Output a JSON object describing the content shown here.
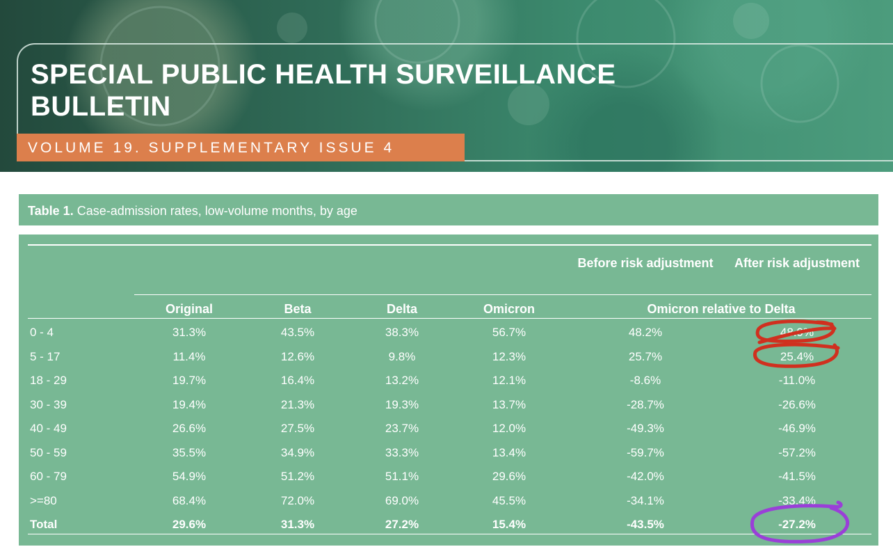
{
  "banner": {
    "title": "SPECIAL PUBLIC HEALTH SURVEILLANCE BULLETIN",
    "volume": "VOLUME 19. SUPPLEMENTARY ISSUE 4"
  },
  "table": {
    "caption_bold": "Table 1.",
    "caption": " Case-admission rates, low-volume months, by age",
    "group_header": "Omicron relative to Delta",
    "subheaders": {
      "before": "Before risk adjustment",
      "after": "After risk adjustment"
    },
    "columns": [
      "Original",
      "Beta",
      "Delta",
      "Omicron"
    ],
    "rows": [
      {
        "age": "0 - 4",
        "values": [
          "31.3%",
          "43.5%",
          "38.3%",
          "56.7%",
          "48.2%",
          "48.9%"
        ]
      },
      {
        "age": "5 - 17",
        "values": [
          "11.4%",
          "12.6%",
          "9.8%",
          "12.3%",
          "25.7%",
          "25.4%"
        ]
      },
      {
        "age": "18 - 29",
        "values": [
          "19.7%",
          "16.4%",
          "13.2%",
          "12.1%",
          "-8.6%",
          "-11.0%"
        ]
      },
      {
        "age": "30 - 39",
        "values": [
          "19.4%",
          "21.3%",
          "19.3%",
          "13.7%",
          "-28.7%",
          "-26.6%"
        ]
      },
      {
        "age": "40 - 49",
        "values": [
          "26.6%",
          "27.5%",
          "23.7%",
          "12.0%",
          "-49.3%",
          "-46.9%"
        ]
      },
      {
        "age": "50 - 59",
        "values": [
          "35.5%",
          "34.9%",
          "33.3%",
          "13.4%",
          "-59.7%",
          "-57.2%"
        ]
      },
      {
        "age": "60 - 79",
        "values": [
          "54.9%",
          "51.2%",
          "51.1%",
          "29.6%",
          "-42.0%",
          "-41.5%"
        ]
      },
      {
        "age": ">=80",
        "values": [
          "68.4%",
          "72.0%",
          "69.0%",
          "45.5%",
          "-34.1%",
          "-33.4%"
        ]
      }
    ],
    "total": {
      "age": "Total",
      "values": [
        "29.6%",
        "31.3%",
        "27.2%",
        "15.4%",
        "-43.5%",
        "-27.2%"
      ]
    }
  },
  "annotations": {
    "red_color": "#d0301f",
    "purple_color": "#9a3fd8"
  },
  "colors": {
    "banner_accent": "#dc7f4c",
    "table_green": "#78b894"
  }
}
